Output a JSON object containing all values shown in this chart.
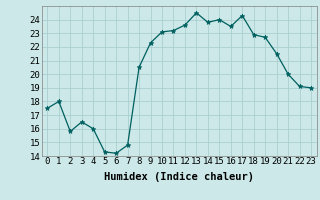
{
  "x": [
    0,
    1,
    2,
    3,
    4,
    5,
    6,
    7,
    8,
    9,
    10,
    11,
    12,
    13,
    14,
    15,
    16,
    17,
    18,
    19,
    20,
    21,
    22,
    23
  ],
  "y": [
    17.5,
    18.0,
    15.8,
    16.5,
    16.0,
    14.3,
    14.2,
    14.8,
    20.5,
    22.3,
    23.1,
    23.2,
    23.6,
    24.5,
    23.8,
    24.0,
    23.5,
    24.3,
    22.9,
    22.7,
    21.5,
    20.0,
    19.1,
    19.0
  ],
  "line_color": "#006060",
  "marker": "*",
  "marker_size": 3.5,
  "bg_color": "#cce8e8",
  "grid_color": "#aacfcf",
  "xlabel": "Humidex (Indice chaleur)",
  "xlim": [
    -0.5,
    23.5
  ],
  "ylim": [
    14,
    25
  ],
  "yticks": [
    14,
    15,
    16,
    17,
    18,
    19,
    20,
    21,
    22,
    23,
    24
  ],
  "xticks": [
    0,
    1,
    2,
    3,
    4,
    5,
    6,
    7,
    8,
    9,
    10,
    11,
    12,
    13,
    14,
    15,
    16,
    17,
    18,
    19,
    20,
    21,
    22,
    23
  ],
  "xlabel_fontsize": 7.5,
  "tick_fontsize": 6.5
}
